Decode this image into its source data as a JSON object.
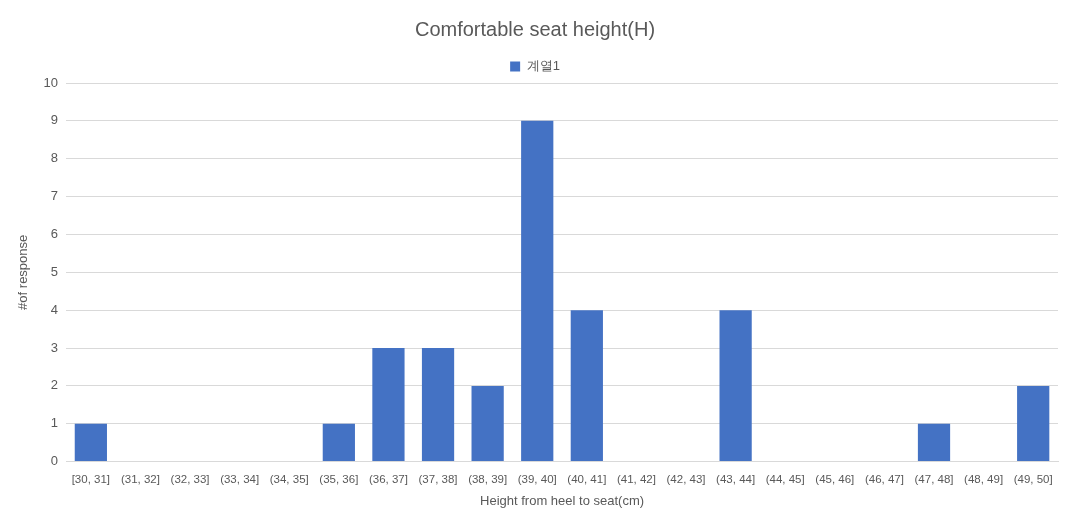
{
  "chart_data": {
    "type": "bar",
    "title": "Comfortable seat height(H)",
    "xlabel": "Height from heel to seat(cm)",
    "ylabel": "#of response",
    "categories": [
      "[30, 31]",
      "(31, 32]",
      "(32, 33]",
      "(33, 34]",
      "(34, 35]",
      "(35, 36]",
      "(36, 37]",
      "(37, 38]",
      "(38, 39]",
      "(39, 40]",
      "(40, 41]",
      "(41, 42]",
      "(42, 43]",
      "(43, 44]",
      "(44, 45]",
      "(45, 46]",
      "(46, 47]",
      "(47, 48]",
      "(48, 49]",
      "(49, 50]"
    ],
    "series": [
      {
        "name": "계열1",
        "color": "#4472c4",
        "values": [
          1,
          0,
          0,
          0,
          0,
          1,
          3,
          3,
          2,
          9,
          4,
          0,
          0,
          4,
          0,
          0,
          0,
          1,
          0,
          2
        ]
      }
    ],
    "ylim": [
      0,
      10
    ],
    "yticks": [
      0,
      1,
      2,
      3,
      4,
      5,
      6,
      7,
      8,
      9,
      10
    ],
    "grid": "y",
    "legend": "top"
  }
}
